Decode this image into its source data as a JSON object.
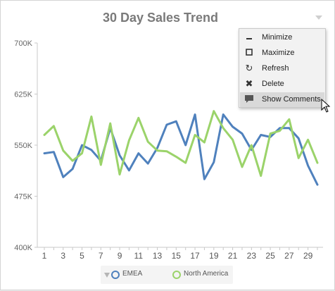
{
  "widget": {
    "title": "30 Day Sales Trend"
  },
  "menu": {
    "items": [
      {
        "label": "Minimize",
        "icon": "minimize-icon"
      },
      {
        "label": "Maximize",
        "icon": "maximize-icon"
      },
      {
        "label": "Refresh",
        "icon": "refresh-icon"
      },
      {
        "label": "Delete",
        "icon": "delete-icon"
      },
      {
        "label": "Show Comments",
        "icon": "comment-icon",
        "highlighted": true
      }
    ]
  },
  "legend": {
    "items": [
      {
        "label": "EMEA",
        "color": "#4f81bd"
      },
      {
        "label": "North America",
        "color": "#9bd36a"
      }
    ]
  },
  "chart_data": {
    "type": "line",
    "title": "30 Day Sales Trend",
    "x": [
      1,
      2,
      3,
      4,
      5,
      6,
      7,
      8,
      9,
      10,
      11,
      12,
      13,
      14,
      15,
      16,
      17,
      18,
      19,
      20,
      21,
      22,
      23,
      24,
      25,
      26,
      27,
      28,
      29,
      30
    ],
    "x_tick_labels": [
      "1",
      "3",
      "5",
      "7",
      "9",
      "11",
      "13",
      "15",
      "17",
      "19",
      "21",
      "23",
      "25",
      "27",
      "29"
    ],
    "y_tick_labels": [
      "700K",
      "625K",
      "550K",
      "475K",
      "400K"
    ],
    "ylim": [
      400000,
      700000
    ],
    "grid": false,
    "legend_position": "bottom",
    "series": [
      {
        "name": "EMEA",
        "color": "#4f81bd",
        "values": [
          538000,
          540000,
          503000,
          515000,
          550000,
          543000,
          527000,
          575000,
          535000,
          513000,
          538000,
          523000,
          546000,
          580000,
          585000,
          550000,
          595000,
          500000,
          525000,
          595000,
          577000,
          567000,
          543000,
          565000,
          562000,
          575000,
          575000,
          560000,
          520000,
          492000
        ]
      },
      {
        "name": "North America",
        "color": "#9bd36a",
        "values": [
          565000,
          578000,
          542000,
          527000,
          538000,
          592000,
          521000,
          582000,
          507000,
          557000,
          590000,
          555000,
          542000,
          541000,
          533000,
          524000,
          565000,
          554000,
          600000,
          575000,
          558000,
          518000,
          550000,
          505000,
          567000,
          571000,
          588000,
          531000,
          558000,
          524000
        ]
      }
    ]
  }
}
